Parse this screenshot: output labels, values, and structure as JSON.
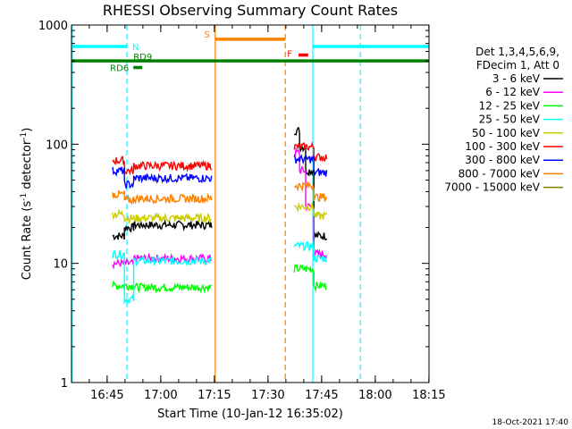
{
  "chart_data": {
    "type": "line",
    "title": "RHESSI Observing Summary Count Rates",
    "xlabel": "Start Time (10-Jan-12 16:35:02)",
    "ylabel_main": "Count Rate (s",
    "ylabel_sup1": "-1",
    "ylabel_mid": " detector",
    "ylabel_sup2": "-1",
    "ylabel_end": ")",
    "yscale": "log",
    "ylim": [
      1,
      1000
    ],
    "xlim_minutes": [
      0,
      100
    ],
    "x_ticks": [
      {
        "label": "16:45",
        "min": 9.97
      },
      {
        "label": "17:00",
        "min": 24.97
      },
      {
        "label": "17:15",
        "min": 39.97
      },
      {
        "label": "17:30",
        "min": 54.97
      },
      {
        "label": "17:45",
        "min": 69.97
      },
      {
        "label": "18:00",
        "min": 84.97
      },
      {
        "label": "18:15",
        "min": 99.97
      }
    ],
    "y_ticks": [
      {
        "label": "1",
        "value": 1
      },
      {
        "label": "10",
        "value": 10
      },
      {
        "label": "100",
        "value": 100
      },
      {
        "label": "1000",
        "value": 1000
      }
    ],
    "legend": {
      "header1": "Det 1,3,4,5,6,9,",
      "header2": "FDecim 1, Att 0",
      "entries": [
        {
          "label": "3 - 6 keV",
          "color": "#000000"
        },
        {
          "label": "6 - 12 keV",
          "color": "#ff00ff"
        },
        {
          "label": "12 - 25 keV",
          "color": "#00ff00"
        },
        {
          "label": "25 - 50 keV",
          "color": "#00ffff"
        },
        {
          "label": "50 - 100 keV",
          "color": "#cccc00"
        },
        {
          "label": "100 - 300 keV",
          "color": "#ff0000"
        },
        {
          "label": "300 - 800 keV",
          "color": "#0000ff"
        },
        {
          "label": "800 - 7000 keV",
          "color": "#ff8000"
        },
        {
          "label": "7000 - 15000 keV",
          "color": "#808000"
        }
      ]
    },
    "flags": [
      {
        "label": "N",
        "color": "#00ffff",
        "level": 660,
        "segments": [
          [
            0,
            15.5
          ],
          [
            67.5,
            100
          ]
        ]
      },
      {
        "label": "S",
        "color": "#ff8000",
        "level": 760,
        "segments": [
          [
            40.2,
            59.8
          ]
        ]
      },
      {
        "label": "F",
        "color": "#ff0000",
        "level": 560,
        "segments": [
          [
            63.5,
            66.2
          ]
        ]
      },
      {
        "label": "RD9",
        "color": "#008000",
        "level": 500,
        "segments": [
          [
            0,
            100
          ]
        ]
      },
      {
        "label": "RD6",
        "color": "#008000",
        "level": 440,
        "segments": [
          [
            17.3,
            19.8
          ]
        ]
      }
    ],
    "vlines": [
      {
        "min": 0.2,
        "color": "#00ffff",
        "style": "solid"
      },
      {
        "min": 15.5,
        "color": "#00ffff",
        "style": "dashed"
      },
      {
        "min": 40.2,
        "color": "#ff8000",
        "style": "solid"
      },
      {
        "min": 59.8,
        "color": "#ff8000",
        "style": "dashed"
      },
      {
        "min": 67.5,
        "color": "#00ffff",
        "style": "solid"
      },
      {
        "min": 80.8,
        "color": "#00ffff",
        "style": "dashed"
      }
    ],
    "series": [
      {
        "name": "3 - 6 keV",
        "color": "#000000",
        "segments": [
          {
            "start": 11.5,
            "end": 14.8,
            "value": 17
          },
          {
            "start": 14.8,
            "end": 17.4,
            "value": 20
          },
          {
            "start": 17.4,
            "end": 39.2,
            "value": 21
          },
          {
            "start": 62.3,
            "end": 63.8,
            "value": 130
          },
          {
            "start": 63.8,
            "end": 65.5,
            "value": 95
          },
          {
            "start": 65.5,
            "end": 67.8,
            "value": 60
          },
          {
            "start": 67.8,
            "end": 71.4,
            "value": 17
          }
        ]
      },
      {
        "name": "6 - 12 keV",
        "color": "#ff00ff",
        "segments": [
          {
            "start": 11.5,
            "end": 17.4,
            "value": 10
          },
          {
            "start": 17.4,
            "end": 39.2,
            "value": 11
          },
          {
            "start": 62.3,
            "end": 63.8,
            "value": 85
          },
          {
            "start": 63.8,
            "end": 65.5,
            "value": 60
          },
          {
            "start": 65.5,
            "end": 67.8,
            "value": 30
          },
          {
            "start": 67.8,
            "end": 71.4,
            "value": 12
          }
        ]
      },
      {
        "name": "12 - 25 keV",
        "color": "#00ff00",
        "segments": [
          {
            "start": 11.5,
            "end": 17.4,
            "value": 6.5
          },
          {
            "start": 17.4,
            "end": 39.2,
            "value": 6.3
          },
          {
            "start": 62.3,
            "end": 67.8,
            "value": 9
          },
          {
            "start": 67.8,
            "end": 71.4,
            "value": 6.5
          }
        ]
      },
      {
        "name": "25 - 50 keV",
        "color": "#00ffff",
        "segments": [
          {
            "start": 11.5,
            "end": 14.8,
            "value": 12
          },
          {
            "start": 14.8,
            "end": 17.4,
            "value": 5
          },
          {
            "start": 17.4,
            "end": 39.2,
            "value": 10.5
          },
          {
            "start": 62.3,
            "end": 67.8,
            "value": 14
          },
          {
            "start": 67.8,
            "end": 71.4,
            "value": 11
          }
        ]
      },
      {
        "name": "50 - 100 keV",
        "color": "#cccc00",
        "segments": [
          {
            "start": 11.5,
            "end": 14.8,
            "value": 26
          },
          {
            "start": 14.8,
            "end": 17.4,
            "value": 24
          },
          {
            "start": 17.4,
            "end": 39.2,
            "value": 24
          },
          {
            "start": 62.3,
            "end": 67.8,
            "value": 30
          },
          {
            "start": 67.8,
            "end": 71.4,
            "value": 25
          }
        ]
      },
      {
        "name": "100 - 300 keV",
        "color": "#ff0000",
        "segments": [
          {
            "start": 11.5,
            "end": 14.8,
            "value": 73
          },
          {
            "start": 14.8,
            "end": 17.4,
            "value": 60
          },
          {
            "start": 17.4,
            "end": 39.2,
            "value": 66
          },
          {
            "start": 62.3,
            "end": 67.8,
            "value": 95
          },
          {
            "start": 67.8,
            "end": 71.4,
            "value": 78
          }
        ]
      },
      {
        "name": "300 - 800 keV",
        "color": "#0000ff",
        "segments": [
          {
            "start": 11.5,
            "end": 14.8,
            "value": 60
          },
          {
            "start": 14.8,
            "end": 17.4,
            "value": 46
          },
          {
            "start": 17.4,
            "end": 39.2,
            "value": 52
          },
          {
            "start": 62.3,
            "end": 67.8,
            "value": 75
          },
          {
            "start": 67.8,
            "end": 71.4,
            "value": 58
          }
        ]
      },
      {
        "name": "800 - 7000 keV",
        "color": "#ff8000",
        "segments": [
          {
            "start": 11.5,
            "end": 14.8,
            "value": 38
          },
          {
            "start": 14.8,
            "end": 17.4,
            "value": 34
          },
          {
            "start": 17.4,
            "end": 39.2,
            "value": 35
          },
          {
            "start": 62.3,
            "end": 67.8,
            "value": 45
          },
          {
            "start": 67.8,
            "end": 71.4,
            "value": 36
          }
        ]
      }
    ]
  },
  "footer": {
    "timestamp": "18-Oct-2021 17:40"
  }
}
